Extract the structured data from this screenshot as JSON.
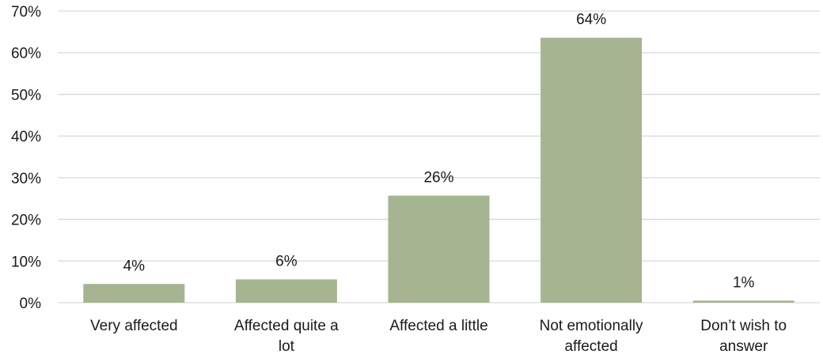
{
  "chart_data": {
    "type": "bar",
    "categories": [
      [
        "Very affected"
      ],
      [
        "Affected quite a",
        "lot"
      ],
      [
        "Affected a little"
      ],
      [
        "Not emotionally",
        "affected"
      ],
      [
        "Don’t wish to",
        "answer"
      ]
    ],
    "values": [
      4.5,
      5.6,
      25.7,
      63.6,
      0.5
    ],
    "data_labels": [
      "4%",
      "6%",
      "26%",
      "64%",
      "1%"
    ],
    "ylim": [
      0,
      70
    ],
    "y_ticks": [
      0,
      10,
      20,
      30,
      40,
      50,
      60,
      70
    ],
    "y_tick_labels": [
      "0%",
      "10%",
      "20%",
      "30%",
      "40%",
      "50%",
      "60%",
      "70%"
    ],
    "bar_color": "#a5b592",
    "grid": true,
    "legend": "none",
    "title": "",
    "xlabel": "",
    "ylabel": ""
  }
}
